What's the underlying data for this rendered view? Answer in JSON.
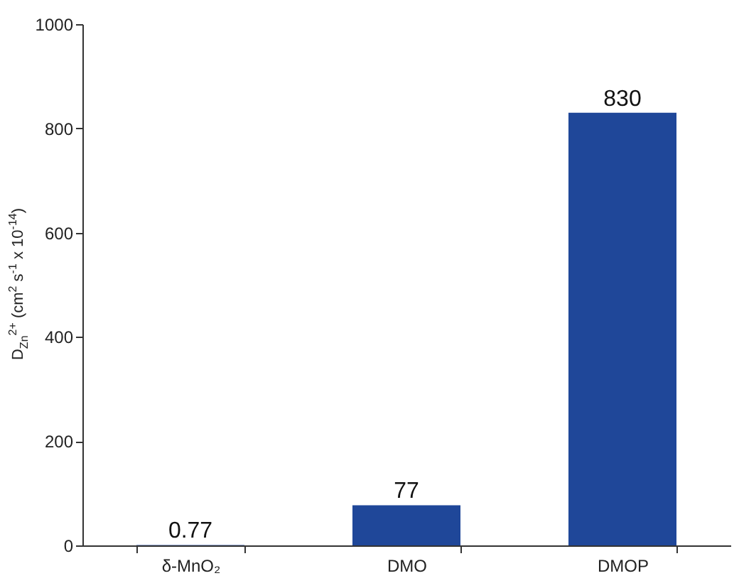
{
  "chart_data": {
    "type": "bar",
    "ylabel": "D$_{Zn}$$^{2+}$ (cm$^{2}$ s$^{-1}$ x 10$^{-14}$)",
    "categories": [
      "δ-MnO₂",
      "DMO",
      "DMOP"
    ],
    "values": [
      0.77,
      77,
      830
    ],
    "color": "#1f4799",
    "ylim": [
      0,
      1000
    ],
    "yticks": [
      0,
      200,
      400,
      600,
      800,
      1000
    ],
    "data_labels": true
  }
}
